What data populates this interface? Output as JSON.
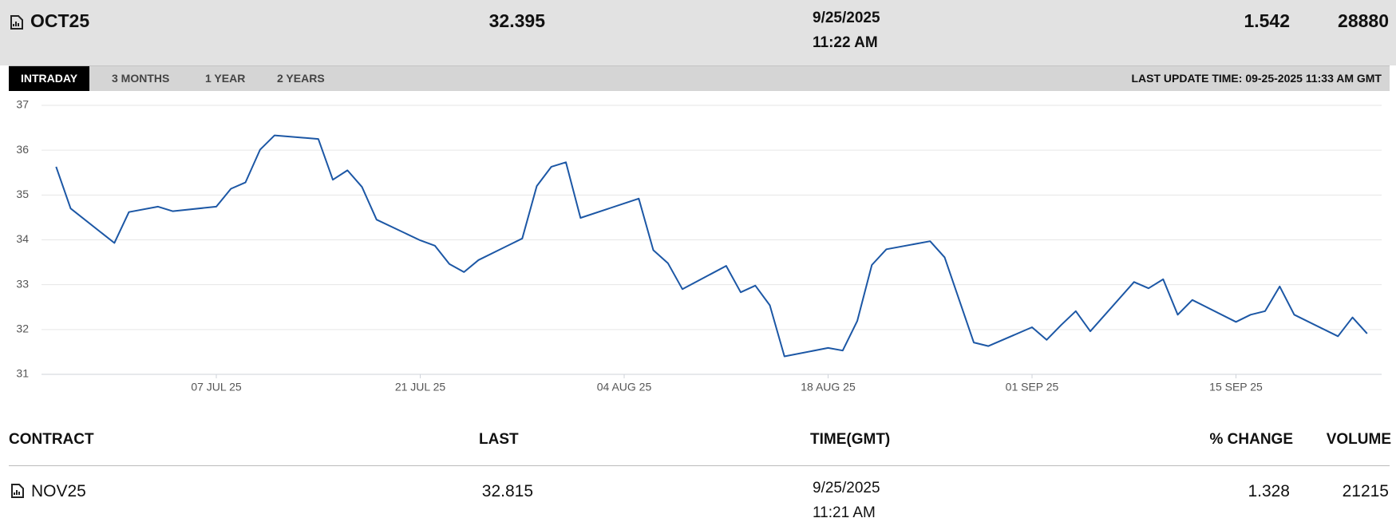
{
  "header": {
    "contract": "OCT25",
    "last": "32.395",
    "date": "9/25/2025",
    "time": "11:22 AM",
    "change": "1.542",
    "volume": "28880"
  },
  "tabs": [
    "INTRADAY",
    "3 MONTHS",
    "1 YEAR",
    "2 YEARS"
  ],
  "last_update": "LAST UPDATE TIME: 09-25-2025 11:33 AM GMT",
  "chart_data": {
    "type": "line",
    "color": "#1c57a5",
    "grid": true,
    "x": [
      "2025-06-26",
      "2025-06-27",
      "2025-06-30",
      "2025-07-01",
      "2025-07-03",
      "2025-07-04",
      "2025-07-07",
      "2025-07-08",
      "2025-07-09",
      "2025-07-10",
      "2025-07-11",
      "2025-07-14",
      "2025-07-15",
      "2025-07-16",
      "2025-07-17",
      "2025-07-18",
      "2025-07-21",
      "2025-07-22",
      "2025-07-23",
      "2025-07-24",
      "2025-07-25",
      "2025-07-28",
      "2025-07-29",
      "2025-07-30",
      "2025-07-31",
      "2025-08-01",
      "2025-08-05",
      "2025-08-06",
      "2025-08-07",
      "2025-08-08",
      "2025-08-11",
      "2025-08-12",
      "2025-08-13",
      "2025-08-14",
      "2025-08-15",
      "2025-08-18",
      "2025-08-19",
      "2025-08-20",
      "2025-08-21",
      "2025-08-22",
      "2025-08-25",
      "2025-08-26",
      "2025-08-28",
      "2025-08-29",
      "2025-09-01",
      "2025-09-02",
      "2025-09-03",
      "2025-09-04",
      "2025-09-05",
      "2025-09-08",
      "2025-09-09",
      "2025-09-10",
      "2025-09-11",
      "2025-09-12",
      "2025-09-15",
      "2025-09-16",
      "2025-09-17",
      "2025-09-18",
      "2025-09-19",
      "2025-09-22",
      "2025-09-23",
      "2025-09-24"
    ],
    "values": [
      35.63,
      34.7,
      33.93,
      34.62,
      34.74,
      34.64,
      34.74,
      35.14,
      35.28,
      36.01,
      36.33,
      36.25,
      35.34,
      35.55,
      35.18,
      34.45,
      33.99,
      33.87,
      33.46,
      33.28,
      33.55,
      34.03,
      35.2,
      35.63,
      35.73,
      34.49,
      34.92,
      33.77,
      33.48,
      32.9,
      33.42,
      32.83,
      32.98,
      32.54,
      31.4,
      31.59,
      31.53,
      32.19,
      33.44,
      33.79,
      33.97,
      33.61,
      31.71,
      31.63,
      32.05,
      31.77,
      32.1,
      32.41,
      31.96,
      33.06,
      32.92,
      33.12,
      32.33,
      32.66,
      32.17,
      32.33,
      32.41,
      32.96,
      32.33,
      31.85,
      32.27,
      31.91
    ],
    "xlim": [
      "2025-06-25",
      "2025-09-25"
    ],
    "xticks": [
      {
        "value": "2025-07-07",
        "label": "07 JUL 25"
      },
      {
        "value": "2025-07-21",
        "label": "21 JUL 25"
      },
      {
        "value": "2025-08-04",
        "label": "04 AUG 25"
      },
      {
        "value": "2025-08-18",
        "label": "18 AUG 25"
      },
      {
        "value": "2025-09-01",
        "label": "01 SEP 25"
      },
      {
        "value": "2025-09-15",
        "label": "15 SEP 25"
      }
    ],
    "ylim": [
      31,
      37
    ],
    "yticks": [
      31,
      32,
      33,
      34,
      35,
      36,
      37
    ]
  },
  "table": {
    "columns": [
      "CONTRACT",
      "LAST",
      "TIME(GMT)",
      "% CHANGE",
      "VOLUME"
    ],
    "rows": [
      {
        "contract": "NOV25",
        "last": "32.815",
        "date": "9/25/2025",
        "time": "11:21 AM",
        "change": "1.328",
        "volume": "21215"
      }
    ]
  }
}
